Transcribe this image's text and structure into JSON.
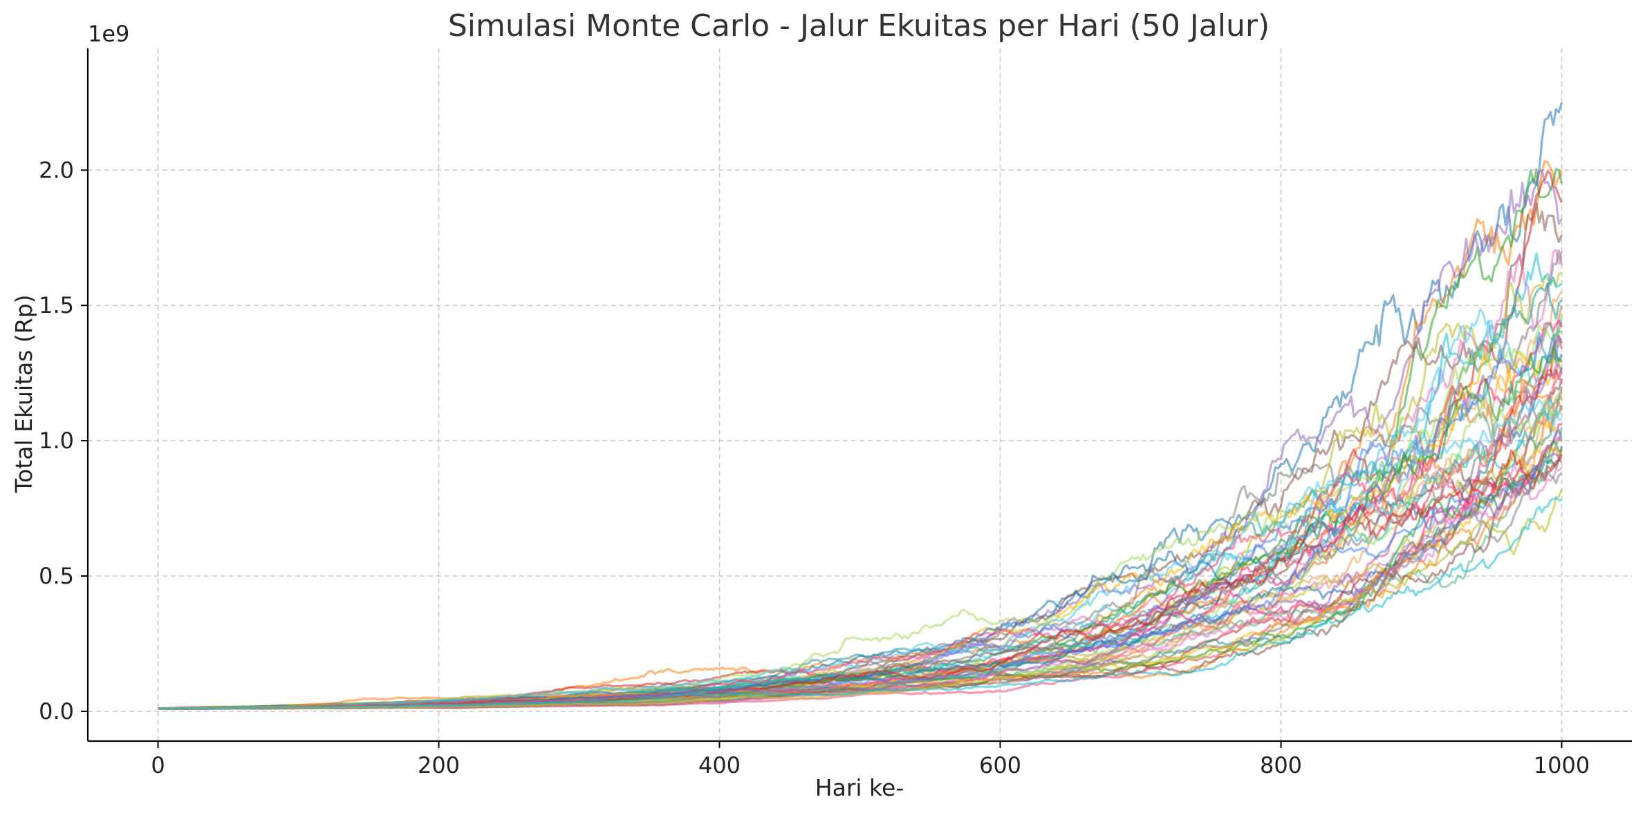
{
  "chart_data": {
    "type": "line",
    "title": "Simulasi Monte Carlo - Jalur Ekuitas per Hari (50 Jalur)",
    "xlabel": "Hari ke-",
    "ylabel": "Total Ekuitas (Rp)",
    "y_offset_label": "1e9",
    "xlim": [
      -50,
      1050
    ],
    "ylim": [
      -110000000,
      2450000000
    ],
    "x_ticks": [
      0,
      200,
      400,
      600,
      800,
      1000
    ],
    "x_tick_labels": [
      "0",
      "200",
      "400",
      "600",
      "800",
      "1000"
    ],
    "y_ticks": [
      0,
      500000000,
      1000000000,
      1500000000,
      2000000000
    ],
    "y_tick_labels": [
      "0.0",
      "0.5",
      "1.0",
      "1.5",
      "2.0"
    ],
    "grid": true,
    "n_paths": 50,
    "days": 1000,
    "start_value": 10000000,
    "final_values": [
      2250000000,
      2000000000,
      1950000000,
      1880000000,
      1820000000,
      1760000000,
      1700000000,
      1650000000,
      1620000000,
      1580000000,
      1550000000,
      1520000000,
      1500000000,
      1470000000,
      1450000000,
      1420000000,
      1400000000,
      1380000000,
      1360000000,
      1340000000,
      1320000000,
      1300000000,
      1290000000,
      1270000000,
      1250000000,
      1230000000,
      1210000000,
      1200000000,
      1180000000,
      1160000000,
      1150000000,
      1130000000,
      1110000000,
      1100000000,
      1080000000,
      1060000000,
      1050000000,
      1030000000,
      1010000000,
      1000000000,
      980000000,
      970000000,
      960000000,
      950000000,
      930000000,
      920000000,
      900000000,
      880000000,
      820000000,
      780000000
    ],
    "series_colors": [
      "#1f77b4",
      "#ff7f0e",
      "#2ca02c",
      "#d62728",
      "#9467bd",
      "#8c564b",
      "#e377c2",
      "#7f7f7f",
      "#bcbd22",
      "#17becf",
      "#f4a261",
      "#2a9d8f",
      "#e76f51",
      "#a8d85a",
      "#4cc9f0",
      "#f72585",
      "#52b788",
      "#ffb703",
      "#3a86ff",
      "#ef476f"
    ]
  }
}
